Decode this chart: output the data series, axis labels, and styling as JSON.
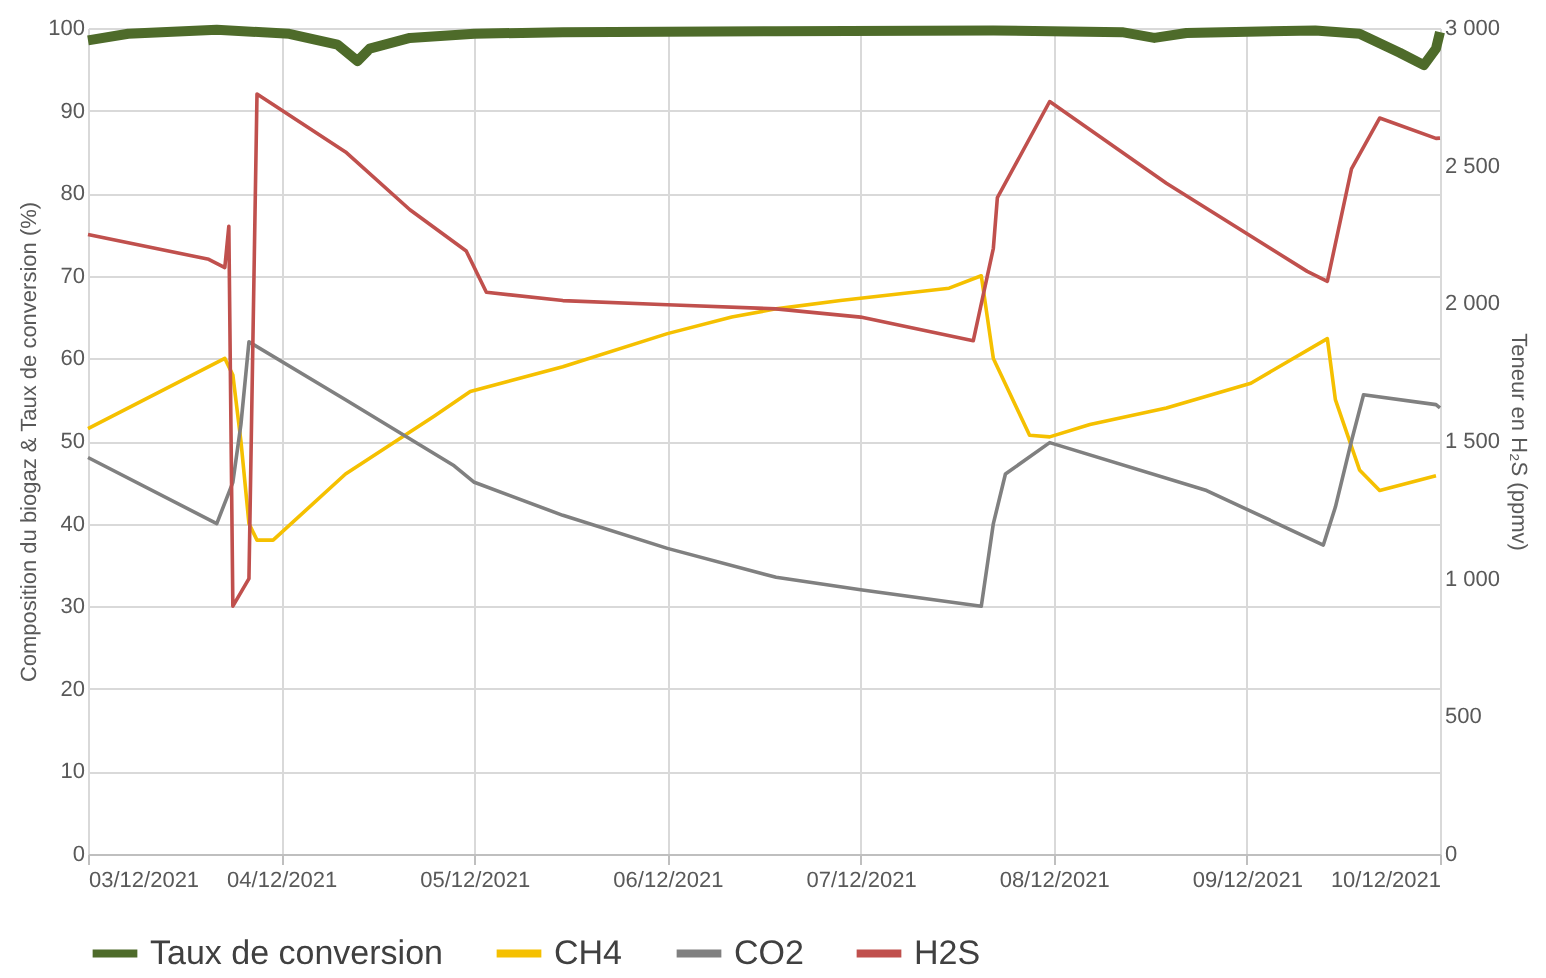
{
  "chart_data": {
    "type": "line",
    "ylabel": "Composition du biogaz & Taux de conversion (%)",
    "y2label": "Teneur en H₂S (ppmv)",
    "xlim": [
      "2021-12-03T00:00",
      "2021-12-10T00:00"
    ],
    "xticks": [
      {
        "value": "2021-12-03T00:00",
        "label": "03/12/2021"
      },
      {
        "value": "2021-12-04T00:00",
        "label": "04/12/2021"
      },
      {
        "value": "2021-12-05T00:00",
        "label": "05/12/2021"
      },
      {
        "value": "2021-12-06T00:00",
        "label": "06/12/2021"
      },
      {
        "value": "2021-12-07T00:00",
        "label": "07/12/2021"
      },
      {
        "value": "2021-12-08T00:00",
        "label": "08/12/2021"
      },
      {
        "value": "2021-12-09T00:00",
        "label": "09/12/2021"
      },
      {
        "value": "2021-12-10T00:00",
        "label": "10/12/2021"
      }
    ],
    "ylim": [
      0,
      100
    ],
    "yticks": [
      0,
      10,
      20,
      30,
      40,
      50,
      60,
      70,
      80,
      90,
      100
    ],
    "y2lim": [
      0,
      3000
    ],
    "y2ticks": [
      0,
      500,
      {
        "value": 1000,
        "label": "1 000"
      },
      {
        "value": 1500,
        "label": "1 500"
      },
      {
        "value": 2000,
        "label": "2 000"
      },
      {
        "value": 2500,
        "label": "2 500"
      },
      {
        "value": 3000,
        "label": "3 000"
      }
    ],
    "grid": true,
    "legend": "bottom",
    "marker": "none",
    "line_style": "solid",
    "series": [
      {
        "name": "Taux de conversion",
        "color": "#4e6b2a",
        "x": [
          "2021-12-03T00:00",
          "2021-12-03T05:00",
          "2021-12-03T16:00",
          "2021-12-04T01:00",
          "2021-12-04T07:00",
          "2021-12-04T09:30",
          "2021-12-04T11:00",
          "2021-12-04T16:00",
          "2021-12-05T00:00",
          "2021-12-05T11:00",
          "2021-12-06T13:30",
          "2021-12-07T16:30",
          "2021-12-08T08:30",
          "2021-12-08T12:30",
          "2021-12-08T16:30",
          "2021-12-09T08:30",
          "2021-12-09T14:00",
          "2021-12-09T19:00",
          "2021-12-09T22:00",
          "2021-12-09T23:30",
          "2021-12-10T00:00"
        ],
        "values": [
          98.5,
          99.3,
          99.8,
          99.3,
          98,
          96,
          97.5,
          98.8,
          99.3,
          99.5,
          99.6,
          99.7,
          99.5,
          98.8,
          99.4,
          99.7,
          99.3,
          97,
          95.5,
          97.5,
          99.5
        ]
      },
      {
        "name": "CH4",
        "color": "#f5c000",
        "x": [
          "2021-12-03T00:00",
          "2021-12-03T17:00",
          "2021-12-03T18:00",
          "2021-12-03T19:00",
          "2021-12-03T20:00",
          "2021-12-03T21:00",
          "2021-12-03T23:00",
          "2021-12-04T08:00",
          "2021-12-04T19:00",
          "2021-12-04T23:30",
          "2021-12-05T11:00",
          "2021-12-06T00:00",
          "2021-12-06T08:00",
          "2021-12-06T13:30",
          "2021-12-06T21:30",
          "2021-12-07T11:00",
          "2021-12-07T15:00",
          "2021-12-07T16:30",
          "2021-12-07T21:00",
          "2021-12-07T23:30",
          "2021-12-08T04:30",
          "2021-12-08T14:00",
          "2021-12-09T00:30",
          "2021-12-09T10:00",
          "2021-12-09T11:00",
          "2021-12-09T14:00",
          "2021-12-09T16:30",
          "2021-12-09T23:30"
        ],
        "values": [
          51.5,
          60,
          58,
          50,
          40,
          38,
          38,
          46,
          53,
          56,
          59,
          63,
          65,
          66,
          67,
          68.5,
          70,
          60,
          50.7,
          50.5,
          52,
          54,
          57,
          62.4,
          55,
          46.5,
          44,
          45.8
        ]
      },
      {
        "name": "CO2",
        "color": "#808080",
        "x": [
          "2021-12-03T00:00",
          "2021-12-03T16:00",
          "2021-12-03T18:00",
          "2021-12-03T19:00",
          "2021-12-03T20:00",
          "2021-12-04T08:00",
          "2021-12-04T21:30",
          "2021-12-05T00:00",
          "2021-12-05T11:00",
          "2021-12-06T00:00",
          "2021-12-06T13:30",
          "2021-12-07T00:00",
          "2021-12-07T15:00",
          "2021-12-07T16:30",
          "2021-12-07T18:00",
          "2021-12-07T23:30",
          "2021-12-08T19:00",
          "2021-12-09T09:30",
          "2021-12-09T11:00",
          "2021-12-09T13:00",
          "2021-12-09T14:30",
          "2021-12-09T23:30",
          "2021-12-10T00:00"
        ],
        "values": [
          48,
          40,
          45,
          52,
          62,
          55,
          47,
          45,
          41,
          37,
          33.5,
          32,
          30,
          40,
          46,
          49.8,
          44,
          37.4,
          42,
          50,
          55.6,
          54.4,
          54
        ]
      },
      {
        "name": "H2S",
        "color": "#c0504d",
        "axis": "y2",
        "x": [
          "2021-12-03T00:00",
          "2021-12-03T15:00",
          "2021-12-03T17:00",
          "2021-12-03T17:30",
          "2021-12-03T18:00",
          "2021-12-03T19:00",
          "2021-12-03T20:00",
          "2021-12-03T21:00",
          "2021-12-04T08:00",
          "2021-12-04T16:00",
          "2021-12-04T23:00",
          "2021-12-05T01:30",
          "2021-12-05T11:00",
          "2021-12-06T00:00",
          "2021-12-06T13:30",
          "2021-12-07T00:00",
          "2021-12-07T14:00",
          "2021-12-07T16:30",
          "2021-12-07T17:00",
          "2021-12-07T23:30",
          "2021-12-08T14:00",
          "2021-12-09T07:30",
          "2021-12-09T10:00",
          "2021-12-09T13:00",
          "2021-12-09T16:30",
          "2021-12-09T23:30",
          "2021-12-10T00:00"
        ],
        "values": [
          2250,
          2160,
          2130,
          2280,
          900,
          950,
          1000,
          2760,
          2550,
          2340,
          2190,
          2040,
          2010,
          1995,
          1980,
          1950,
          1864,
          2200,
          2384,
          2733,
          2436,
          2116,
          2080,
          2488,
          2673,
          2599,
          2600
        ]
      }
    ]
  }
}
